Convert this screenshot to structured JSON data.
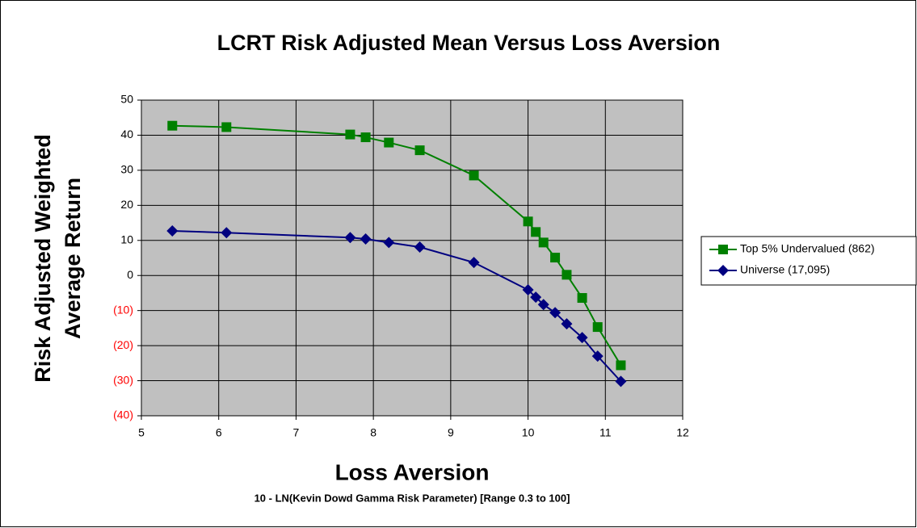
{
  "chart_data": {
    "type": "line",
    "title": "LCRT Risk Adjusted Mean Versus Loss Aversion",
    "xlabel": "Loss Aversion",
    "xsublabel": "10 - LN(Kevin Dowd Gamma Risk Parameter) [Range 0.3 to 100]",
    "ylabel": [
      "Risk Adjusted Weighted",
      "Average Return"
    ],
    "x": [
      5.4,
      6.1,
      7.7,
      7.9,
      8.2,
      8.6,
      9.3,
      10.0,
      10.1,
      10.2,
      10.35,
      10.5,
      10.7,
      10.9,
      11.2
    ],
    "series": [
      {
        "name": "Top 5% Undervalued (862)",
        "color": "#008000",
        "marker": "square",
        "values": [
          42.7,
          42.3,
          40.2,
          39.4,
          37.9,
          35.7,
          28.5,
          15.4,
          12.4,
          9.4,
          5.1,
          0.2,
          -6.4,
          -14.7,
          -25.6
        ]
      },
      {
        "name": "Universe (17,095)",
        "color": "#000080",
        "marker": "diamond",
        "values": [
          12.7,
          12.2,
          10.8,
          10.4,
          9.4,
          8.1,
          3.7,
          -4.1,
          -6.2,
          -8.3,
          -10.6,
          -13.8,
          -17.7,
          -23.0,
          -30.2
        ]
      }
    ],
    "xlim": [
      5,
      12
    ],
    "xticks": [
      5,
      6,
      7,
      8,
      9,
      10,
      11,
      12
    ],
    "ylim": [
      -40,
      50
    ],
    "yticks": [
      {
        "value": -40,
        "label": "(40)"
      },
      {
        "value": -30,
        "label": "(30)"
      },
      {
        "value": -20,
        "label": "(20)"
      },
      {
        "value": -10,
        "label": "(10)"
      },
      0,
      10,
      20,
      30,
      40,
      50
    ],
    "negative_tick_color": "#ff0000",
    "grid": true,
    "plot_background": "#c0c0c0",
    "legend": "right"
  }
}
